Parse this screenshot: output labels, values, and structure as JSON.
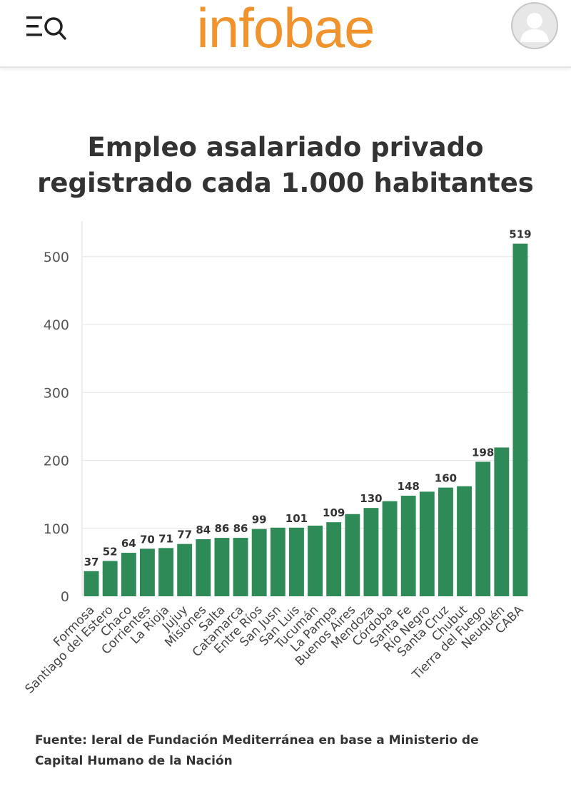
{
  "header": {
    "logo": "infobae",
    "menu_icon": "menu-search-icon",
    "avatar_icon": "user-avatar-icon"
  },
  "colors": {
    "brand": "#f0932c",
    "bar": "#2e8b57",
    "text": "#333333",
    "grid": "#e8e8e8"
  },
  "chart_data": {
    "type": "bar",
    "title_lines": [
      "Empleo asalariado privado",
      "registrado cada 1.000 habitantes"
    ],
    "categories": [
      "Formosa",
      "Santiago del Estero",
      "Chaco",
      "Corrientes",
      "La Rioja",
      "Jujuy",
      "Misiones",
      "Salta",
      "Catamarca",
      "Entre Ríos",
      "San Jusn",
      "San Luis",
      "Tucumán",
      "La Pampa",
      "Buenos Aires",
      "Mendoza",
      "Córdoba",
      "Santa Fe",
      "Río Negro",
      "Santa Cruz",
      "Chubut",
      "Tierra del Fuego",
      "Neuquén",
      "CABA"
    ],
    "values": [
      37,
      52,
      64,
      70,
      71,
      77,
      84,
      86,
      86,
      99,
      101,
      101,
      104,
      109,
      121,
      130,
      140,
      148,
      154,
      160,
      162,
      198,
      219,
      519
    ],
    "data_labels": [
      "37",
      "52",
      "64",
      "70",
      "71",
      "77",
      "84",
      "86",
      "86",
      "99",
      "",
      "101",
      "",
      "109",
      "",
      "130",
      "",
      "148",
      "",
      "160",
      "",
      "198",
      "",
      "519"
    ],
    "yticks": [
      0,
      100,
      200,
      300,
      400,
      500
    ],
    "ylim": [
      0,
      550
    ],
    "grid": true,
    "legend": "none"
  },
  "source": {
    "line1": "Fuente: Ieral de Fundación Mediterránea en base a Ministerio de",
    "line2": "Capital Humano de la Nación"
  }
}
